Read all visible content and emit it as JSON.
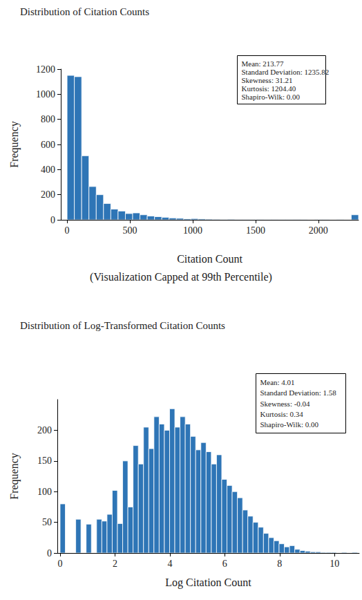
{
  "chart_data": [
    {
      "type": "histogram",
      "title": "Distribution of Citation Counts",
      "x_label": "Citation Count",
      "y_label": "Frequency",
      "annotations": [
        "(Visualization Capped at 99th Percentile)"
      ],
      "stats": [
        "Mean: 213.77",
        "Standard Deviation: 1235.82",
        "Skewness: 31.21",
        "Kurtosis: 1204.40",
        "Shapiro-Wilk: 0.00"
      ],
      "color": "#2e75b6",
      "grid": false,
      "bins": [
        0,
        58,
        116,
        174,
        232,
        290,
        348,
        406,
        464,
        522,
        580,
        638,
        696,
        754,
        812,
        870,
        928,
        986,
        1044,
        1102,
        1160,
        1218,
        1276,
        1334,
        1392,
        1450,
        1508,
        1566,
        1624,
        1682,
        1740,
        1798,
        1856,
        1914,
        1972,
        2030,
        2088,
        2146,
        2204,
        2262,
        2320
      ],
      "values": [
        1150,
        1140,
        510,
        265,
        200,
        130,
        85,
        70,
        50,
        55,
        40,
        30,
        25,
        20,
        15,
        12,
        8,
        10,
        7,
        5,
        4,
        3,
        4,
        2,
        2,
        1,
        3,
        1,
        2,
        1,
        1,
        2,
        1,
        0,
        1,
        1,
        0,
        1,
        0,
        40
      ],
      "xlim": [
        -50,
        2320
      ],
      "xticks": [
        0,
        500,
        1000,
        1500,
        2000
      ],
      "ylim": [
        0,
        1200
      ],
      "yticks": [
        0,
        200,
        400,
        600,
        800,
        1000,
        1200
      ]
    },
    {
      "type": "histogram",
      "title": "Distribution of Log-Transformed Citation Counts",
      "x_label": "Log Citation Count",
      "y_label": "Frequency",
      "stats": [
        "Mean: 4.01",
        "Standard Deviation: 1.58",
        "Skewness: -0.04",
        "Kurtosis: 0.34",
        "Shapiro-Wilk: 0.00"
      ],
      "color": "#2e75b6",
      "grid": false,
      "bins": [
        0,
        0.19,
        0.38,
        0.57,
        0.76,
        0.95,
        1.14,
        1.33,
        1.52,
        1.71,
        1.9,
        2.09,
        2.28,
        2.47,
        2.66,
        2.85,
        3.04,
        3.23,
        3.42,
        3.61,
        3.8,
        3.99,
        4.18,
        4.37,
        4.56,
        4.75,
        4.94,
        5.13,
        5.32,
        5.51,
        5.7,
        5.89,
        6.08,
        6.27,
        6.46,
        6.65,
        6.84,
        7.03,
        7.22,
        7.41,
        7.6,
        7.79,
        7.98,
        8.17,
        8.36,
        8.55,
        8.74,
        8.93,
        9.12,
        9.31,
        9.5,
        9.69,
        9.88,
        10.07,
        10.26,
        10.45,
        10.64,
        10.83
      ],
      "values": [
        80,
        0,
        0,
        55,
        0,
        47,
        0,
        55,
        52,
        63,
        102,
        48,
        150,
        75,
        175,
        145,
        205,
        170,
        222,
        210,
        200,
        235,
        205,
        222,
        210,
        190,
        168,
        180,
        165,
        145,
        160,
        120,
        110,
        100,
        90,
        70,
        60,
        50,
        42,
        32,
        25,
        20,
        15,
        10,
        12,
        6,
        4,
        3,
        2,
        2,
        1,
        1,
        1,
        0,
        1,
        0,
        1
      ],
      "xlim": [
        -0.1,
        10.9
      ],
      "xticks": [
        0,
        2,
        4,
        6,
        8,
        10
      ],
      "ylim": [
        0,
        250
      ],
      "yticks": [
        0,
        50,
        100,
        150,
        200
      ]
    }
  ]
}
